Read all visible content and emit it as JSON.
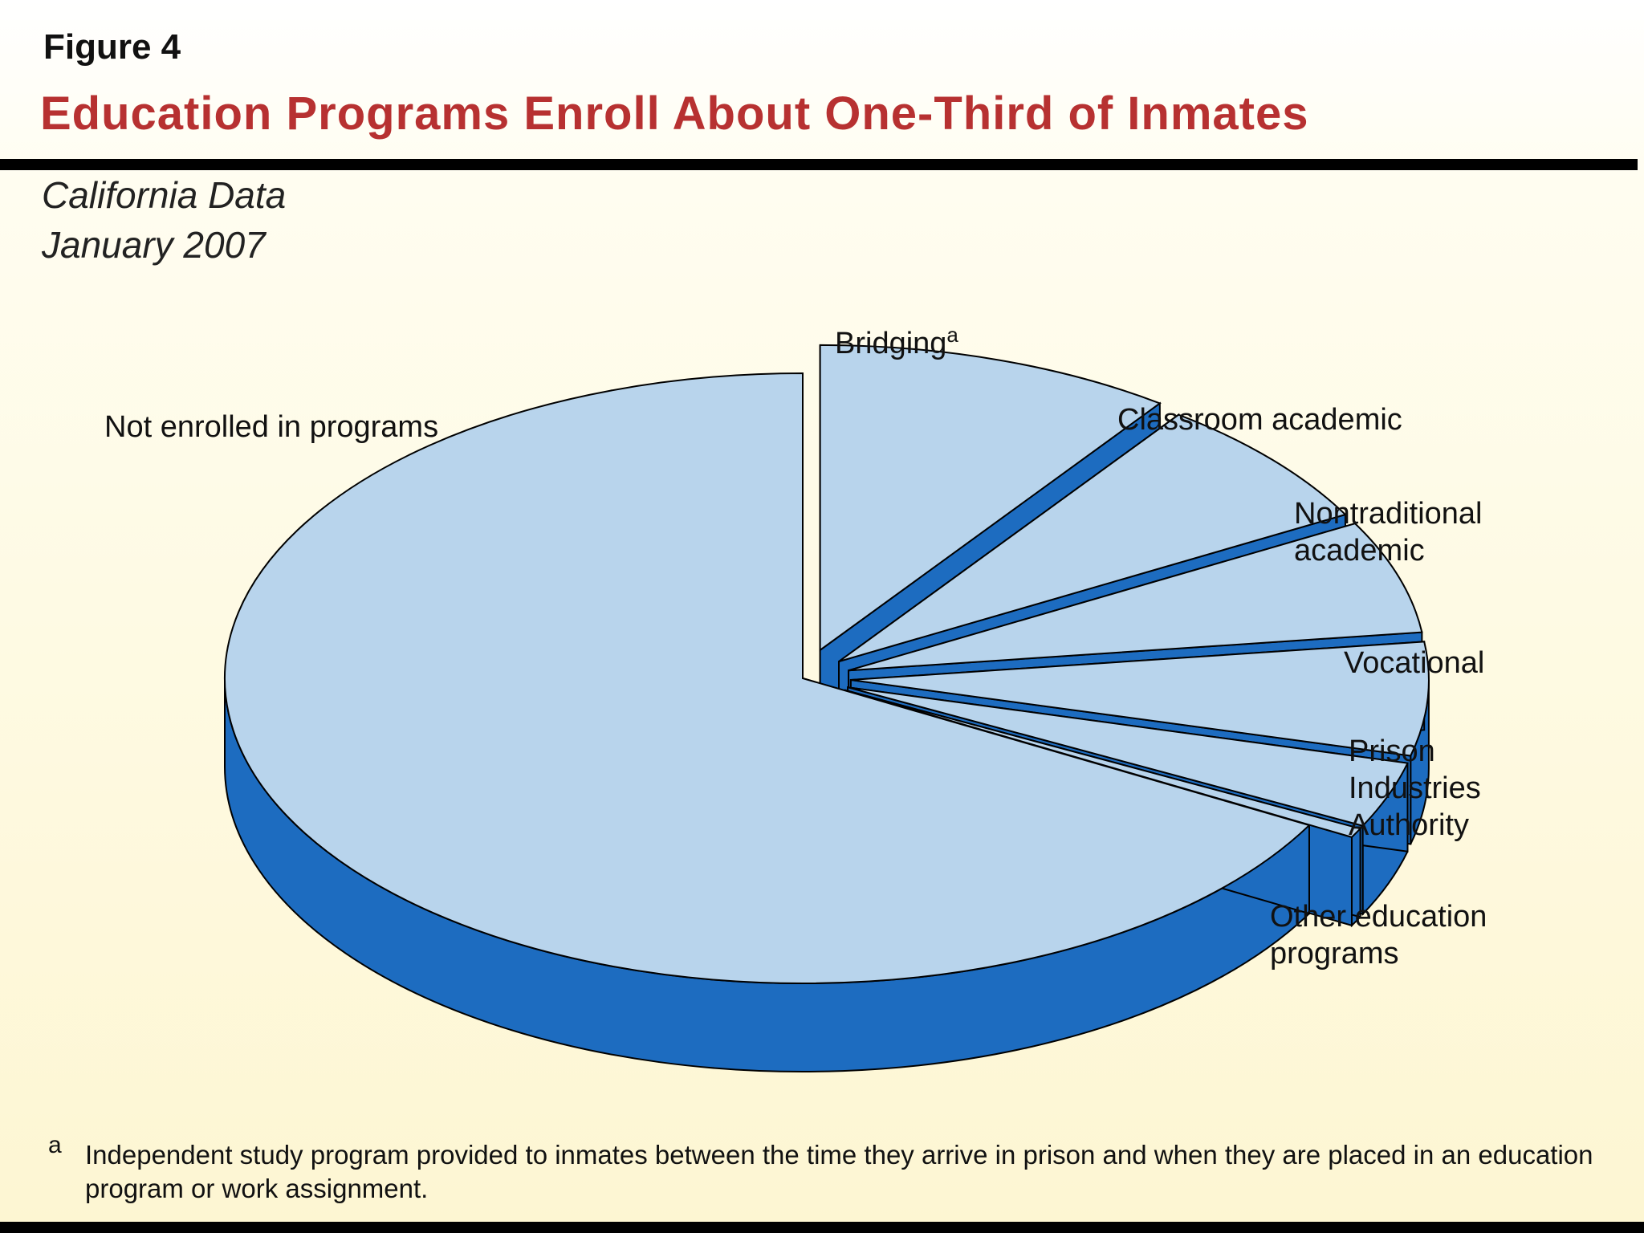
{
  "figure_label": "Figure 4",
  "title": "Education Programs Enroll About One-Third of Inmates",
  "subtitle_line1": "California Data",
  "subtitle_line2": "January 2007",
  "footnote_mark": "a",
  "footnote_text": "Independent study program provided to inmates between the time they arrive in prison and when they are placed in an education program or work assignment.",
  "colors": {
    "slice_top": "#b8d4ec",
    "slice_side": "#1d6cc0",
    "title": "#b73131",
    "outline": "#000000"
  },
  "chart_data": {
    "type": "pie",
    "title": "Education Programs Enroll About One-Third of Inmates",
    "three_d": true,
    "exploded": true,
    "slices": [
      {
        "label": "Bridging",
        "label_lines": [
          "Bridging"
        ],
        "superscript": "a",
        "value": 10.0
      },
      {
        "label": "Classroom academic",
        "label_lines": [
          "Classroom academic"
        ],
        "value": 7.0
      },
      {
        "label": "Nontraditional academic",
        "label_lines": [
          "Nontraditional",
          "academic"
        ],
        "value": 6.0
      },
      {
        "label": "Vocational",
        "label_lines": [
          "Vocational"
        ],
        "value": 6.0
      },
      {
        "label": "Prison Industries Authority",
        "label_lines": [
          "Prison",
          "Industries",
          "Authority"
        ],
        "value": 3.5
      },
      {
        "label": "Other education programs",
        "label_lines": [
          "Other education",
          "programs"
        ],
        "value": 0.5
      },
      {
        "label": "Not enrolled in programs",
        "label_lines": [
          "Not enrolled in programs"
        ],
        "value": 67.0
      }
    ]
  }
}
